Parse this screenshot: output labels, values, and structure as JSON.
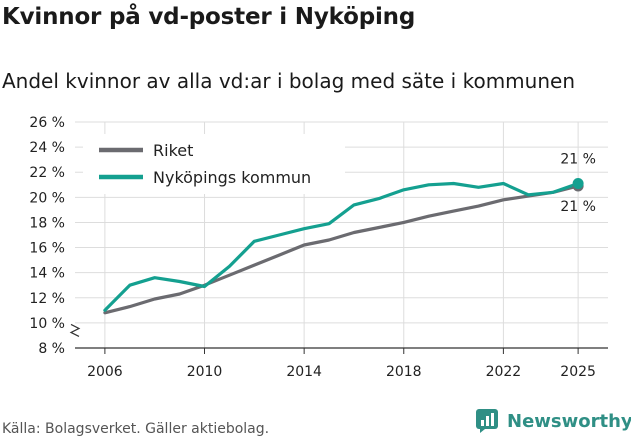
{
  "header": {
    "title": "Kvinnor på vd-poster i Nyköping",
    "subtitle": "Andel kvinnor av alla vd:ar i bolag med säte i kommunen"
  },
  "footer": {
    "source": "Källa: Bolagsverket. Gäller aktiebolag.",
    "brand": "Newsworthy"
  },
  "colors": {
    "riket": "#6b6b70",
    "kommun": "#14a090",
    "grid": "#dddddd",
    "axis": "#333333"
  },
  "chart_data": {
    "type": "line",
    "x": [
      2006,
      2007,
      2008,
      2009,
      2010,
      2011,
      2012,
      2013,
      2014,
      2015,
      2016,
      2017,
      2018,
      2019,
      2020,
      2021,
      2022,
      2023,
      2024,
      2025
    ],
    "series": [
      {
        "name": "Riket",
        "values": [
          10.8,
          11.3,
          11.9,
          12.3,
          13.0,
          13.8,
          14.6,
          15.4,
          16.2,
          16.6,
          17.2,
          17.6,
          18.0,
          18.5,
          18.9,
          19.3,
          19.8,
          20.1,
          20.4,
          20.9
        ],
        "end_label": "21 %"
      },
      {
        "name": "Nyköpings kommun",
        "values": [
          11.0,
          13.0,
          13.6,
          13.3,
          12.9,
          14.5,
          16.5,
          17.0,
          17.5,
          17.9,
          19.4,
          19.9,
          20.6,
          21.0,
          21.1,
          20.8,
          21.1,
          20.2,
          20.4,
          21.1
        ],
        "end_label": "21 %"
      }
    ],
    "y_ticks": [
      "8 %",
      "10 %",
      "12 %",
      "14 %",
      "16 %",
      "18 %",
      "20 %",
      "22 %",
      "24 %",
      "26 %"
    ],
    "x_ticks": [
      "2006",
      "2010",
      "2014",
      "2018",
      "2022",
      "2025"
    ],
    "ylim": [
      8,
      26
    ],
    "xlim": [
      2004.8,
      2026.2
    ],
    "grid": true,
    "legend_position": "top-left",
    "y_axis_break": true
  }
}
